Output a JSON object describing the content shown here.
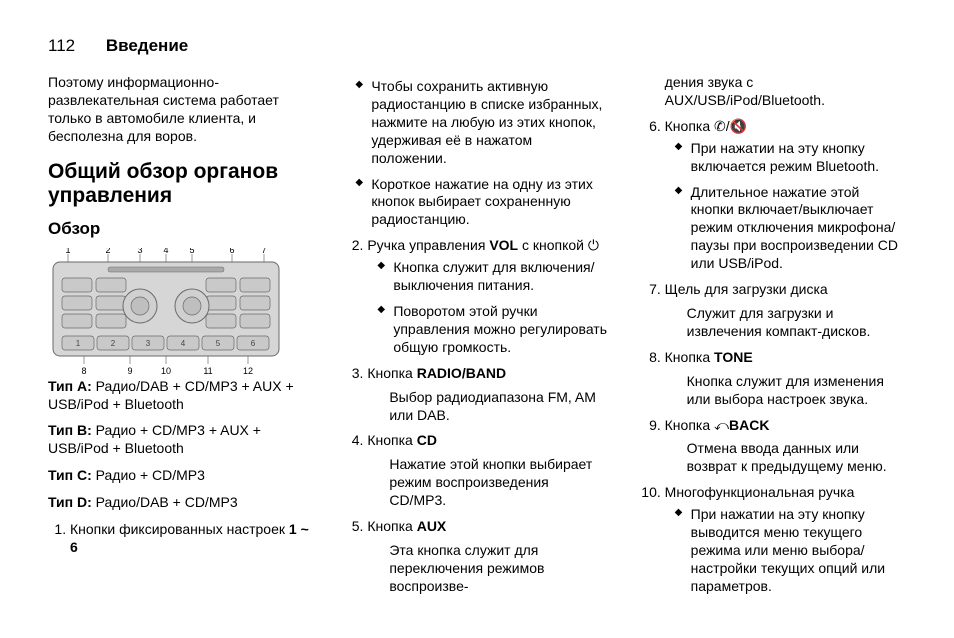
{
  "header": {
    "page": "112",
    "title": "Введение"
  },
  "col1": {
    "intro": "Поэтому информационно-развлекательная система работает только в автомобиле клиента, и бесполезна для воров.",
    "h2": "Общий обзор органов управления",
    "h3": "Обзор",
    "panel": {
      "labels": [
        "1",
        "2",
        "3",
        "4",
        "5",
        "6",
        "7",
        "8",
        "9",
        "10",
        "11",
        "12"
      ],
      "buttons": [
        "1",
        "2",
        "3",
        "4",
        "5",
        "6"
      ],
      "body": "#d6d6d6",
      "face": "#d0d0d0",
      "stroke": "#6a6a6a",
      "btn": "#c9c9c9"
    },
    "typeA_l": "Тип A:",
    "typeA": " Радио/DAB + CD/MP3 + AUX + USB/iPod + Bluetooth",
    "typeB_l": "Тип B:",
    "typeB": " Радио + CD/MP3 + AUX + USB/iPod + Bluetooth",
    "typeC_l": "Тип C:",
    "typeC": " Радио + CD/MP3",
    "typeD_l": "Тип D:",
    "typeD": " Радио/DAB + CD/MP3",
    "li1": "Кнопки фиксированных настроек ",
    "li1b": "1 ~ 6"
  },
  "col2": {
    "b1": "Чтобы сохранить активную радиостанцию в списке избранных, нажмите на любую из этих кнопок, удерживая её в нажатом положении.",
    "b2": "Короткое нажатие на одну из этих кнопок выбирает сохраненную радиостанцию.",
    "li2a": "Ручка управления ",
    "li2b": "VOL",
    "li2c": " с кнопкой ",
    "li2sym": "⏻",
    "li2_b1": "Кнопка служит для включения/выключения питания.",
    "li2_b2": "Поворотом этой ручки управления можно регулировать общую громкость.",
    "li3a": "Кнопка ",
    "li3b": "RADIO/BAND",
    "li3t": "Выбор радиодиапазона FM, AM или DAB.",
    "li4a": "Кнопка ",
    "li4b": "CD",
    "li4t": "Нажатие этой кнопки выбирает режим воспроизведения CD/MP3.",
    "li5a": "Кнопка ",
    "li5b": "AUX",
    "li5t": "Эта кнопка служит для переключения режимов воспроизве-"
  },
  "col3": {
    "cont": "дения звука с AUX/USB/iPod/Bluetooth.",
    "li6a": "Кнопка ",
    "li6sym": "✆/🔇",
    "li6_b1": "При нажатии на эту кнопку включается режим Bluetooth.",
    "li6_b2": "Длительное нажатие этой кнопки включает/выключает режим отключения микрофона/паузы при воспроизведении CD или USB/iPod.",
    "li7": "Щель для загрузки диска",
    "li7t": "Служит для загрузки и извлечения компакт-дисков.",
    "li8a": "Кнопка ",
    "li8b": "TONE",
    "li8t": "Кнопка служит для изменения или выбора настроек звука.",
    "li9a": "Кнопка ",
    "li9sym": "⤺",
    "li9b": "BACK",
    "li9t": "Отмена ввода данных или возврат к предыдущему меню.",
    "li10": "Многофункциональная ручка",
    "li10_b1": "При нажатии на эту кнопку выводится меню текущего режима или меню выбора/настройки текущих опций или параметров."
  }
}
